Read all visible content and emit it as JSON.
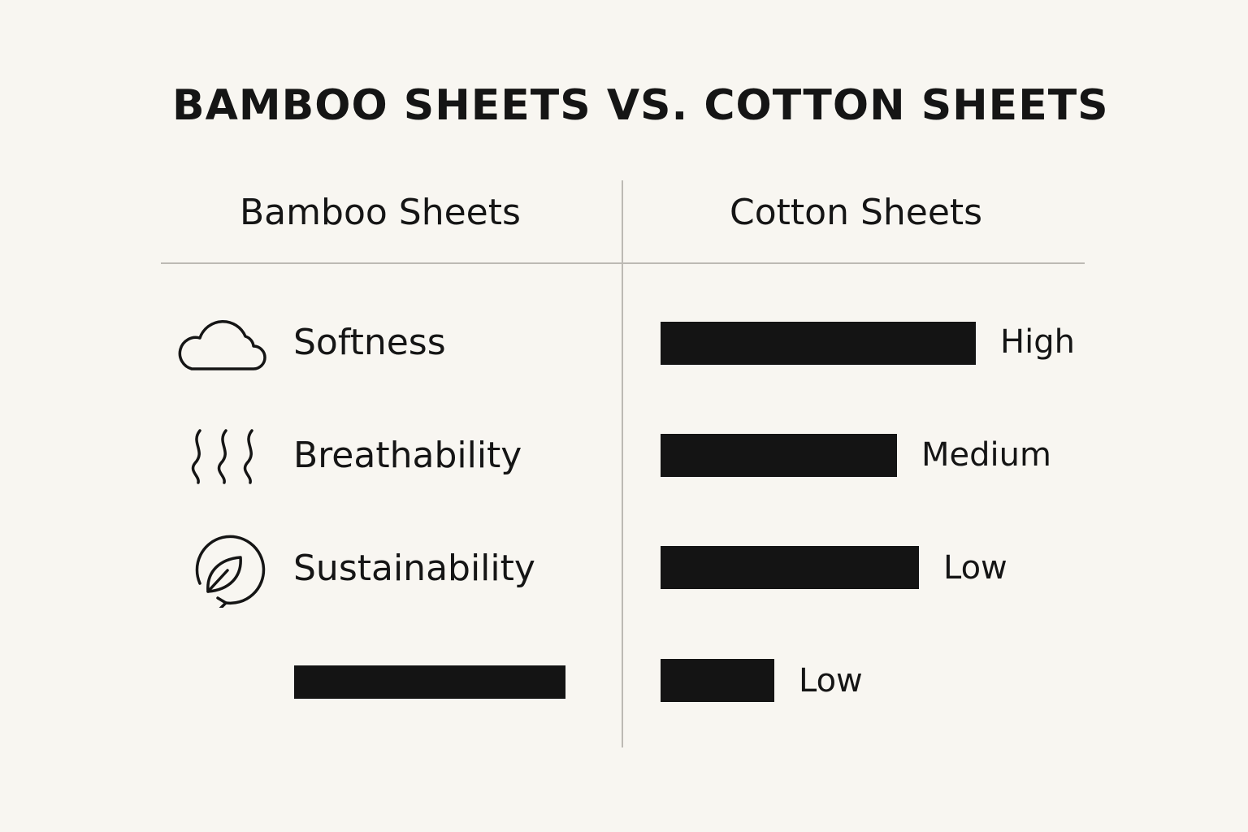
{
  "title": "BAMBOO SHEETS VS. COTTON SHEETS",
  "columns": {
    "left": "Bamboo Sheets",
    "right": "Cotton Sheets"
  },
  "colors": {
    "background": "#f8f6f1",
    "bar": "#141414",
    "divider": "#bdbab4"
  },
  "rows": [
    {
      "label": "Softness",
      "icon": "cloud-icon",
      "cotton_level": "High",
      "cotton_bar_fraction": 1.0
    },
    {
      "label": "Breathability",
      "icon": "heat-waves-icon",
      "cotton_level": "Medium",
      "cotton_bar_fraction": 0.75
    },
    {
      "label": "Sustainability",
      "icon": "leaf-recycle-icon",
      "cotton_level": "Low",
      "cotton_bar_fraction": 0.82
    },
    {
      "label": "",
      "icon": "",
      "cotton_level": "Low",
      "cotton_bar_fraction": 0.36,
      "bamboo_bar_fraction": 0.86
    }
  ]
}
